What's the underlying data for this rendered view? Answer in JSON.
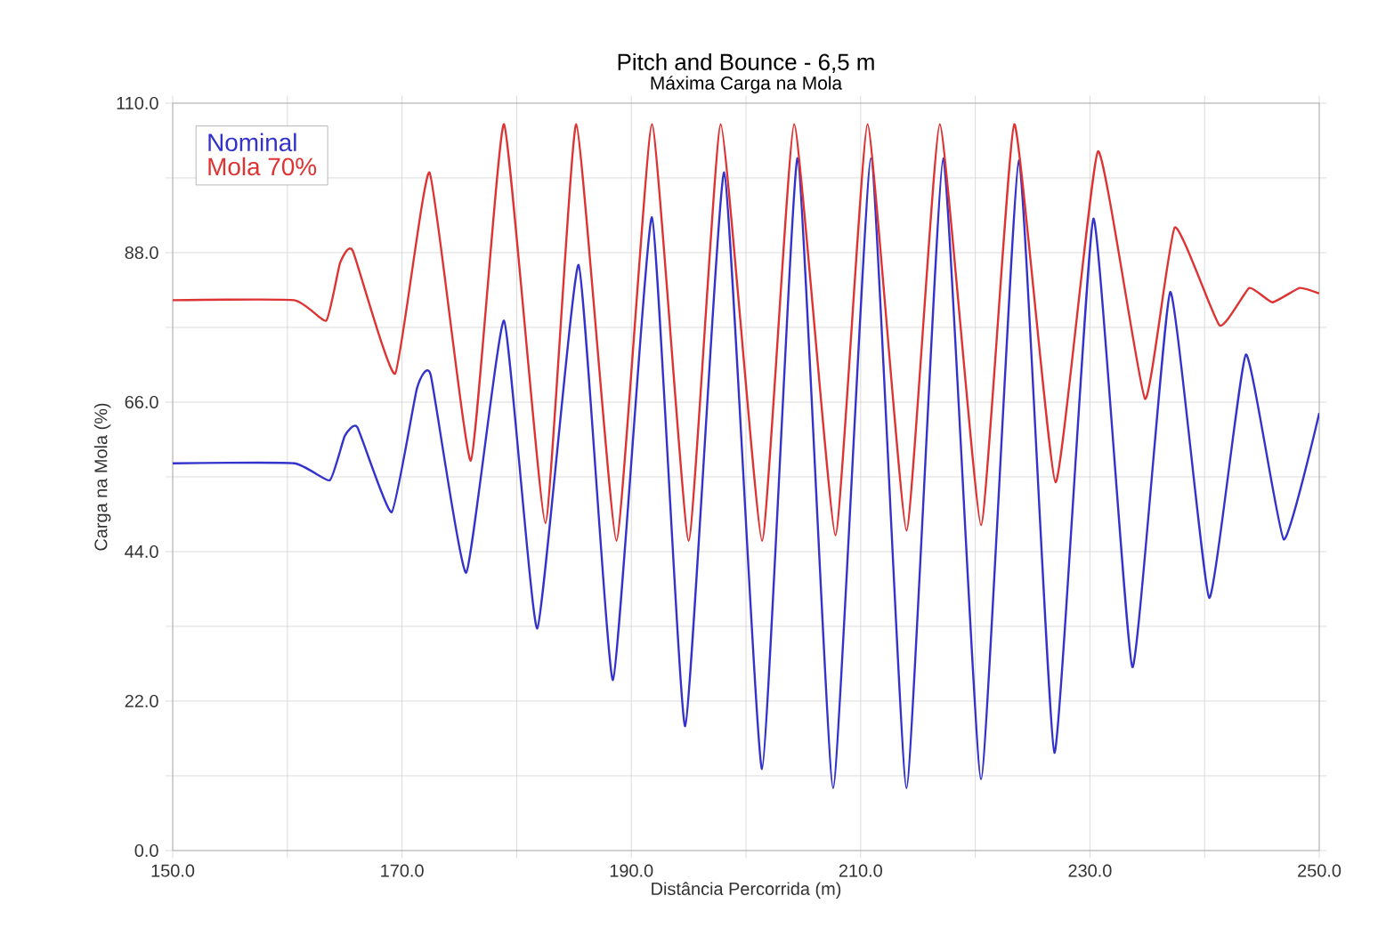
{
  "chart_data": {
    "type": "line",
    "title": "Pitch and Bounce - 6,5 m",
    "subtitle": "Máxima Carga na Mola",
    "xlabel": "Distância Percorrida (m)",
    "ylabel": "Carga na Mola (%)",
    "xlim": [
      150,
      250
    ],
    "ylim": [
      0,
      110
    ],
    "xticks": [
      {
        "value": 150,
        "label": "150.0"
      },
      {
        "value": 160,
        "label": null
      },
      {
        "value": 170,
        "label": "170.0"
      },
      {
        "value": 180,
        "label": null
      },
      {
        "value": 190,
        "label": "190.0"
      },
      {
        "value": 200,
        "label": null
      },
      {
        "value": 210,
        "label": "210.0"
      },
      {
        "value": 220,
        "label": null
      },
      {
        "value": 230,
        "label": "230.0"
      },
      {
        "value": 240,
        "label": null
      },
      {
        "value": 250,
        "label": "250.0"
      }
    ],
    "yticks": [
      {
        "value": 0,
        "label": "0.0"
      },
      {
        "value": 11,
        "label": null
      },
      {
        "value": 22,
        "label": "22.0"
      },
      {
        "value": 33,
        "label": null
      },
      {
        "value": 44,
        "label": "44.0"
      },
      {
        "value": 55,
        "label": null
      },
      {
        "value": 66,
        "label": "66.0"
      },
      {
        "value": 77,
        "label": null
      },
      {
        "value": 88,
        "label": "88.0"
      },
      {
        "value": 99,
        "label": null
      },
      {
        "value": 110,
        "label": "110.0"
      }
    ],
    "grid": true,
    "legend": "top left",
    "marker": "none",
    "line_style": "solid",
    "series": [
      {
        "name": "Nominal",
        "color": "#3333cc",
        "x": [
          150,
          160.6,
          163.7,
          165,
          166.1,
          169.1,
          171.3,
          172.5,
          175.6,
          178.9,
          181.8,
          185.4,
          188.4,
          191.8,
          194.7,
          198.1,
          201.4,
          204.5,
          207.6,
          210.9,
          214,
          217.2,
          220.5,
          223.8,
          226.9,
          230.3,
          233.7,
          237,
          240.4,
          243.6,
          246.9,
          250
        ],
        "values": [
          57,
          57,
          54.5,
          61,
          62.3,
          49.8,
          68,
          70,
          40.9,
          78,
          32.7,
          86.2,
          25.1,
          93.2,
          18.3,
          99.8,
          12,
          101.9,
          9.2,
          101.9,
          9.2,
          101.9,
          10.5,
          101.6,
          14.4,
          93,
          27,
          82.2,
          37.2,
          73,
          45.8,
          64.4
        ]
      },
      {
        "name": "Mola 70%",
        "color": "#dd3333",
        "x": [
          150,
          160.6,
          163.4,
          164.6,
          165.7,
          169.4,
          172.4,
          176,
          178.9,
          182.5,
          185.2,
          188.7,
          191.8,
          195,
          197.8,
          201.4,
          204.2,
          207.8,
          210.6,
          214,
          216.9,
          220.5,
          223.4,
          227,
          230.7,
          234.8,
          237.4,
          241.3,
          243.9,
          245.9,
          248.3,
          250
        ],
        "values": [
          81,
          81,
          78,
          86.5,
          88.3,
          70.2,
          99.8,
          57.4,
          106.9,
          48.2,
          106.9,
          45.6,
          106.9,
          45.6,
          106.9,
          45.6,
          106.9,
          46.4,
          106.9,
          47.1,
          106.9,
          47.9,
          106.9,
          54.2,
          102.9,
          66.5,
          91.7,
          77.3,
          82.8,
          80.7,
          82.8,
          82
        ]
      }
    ]
  }
}
